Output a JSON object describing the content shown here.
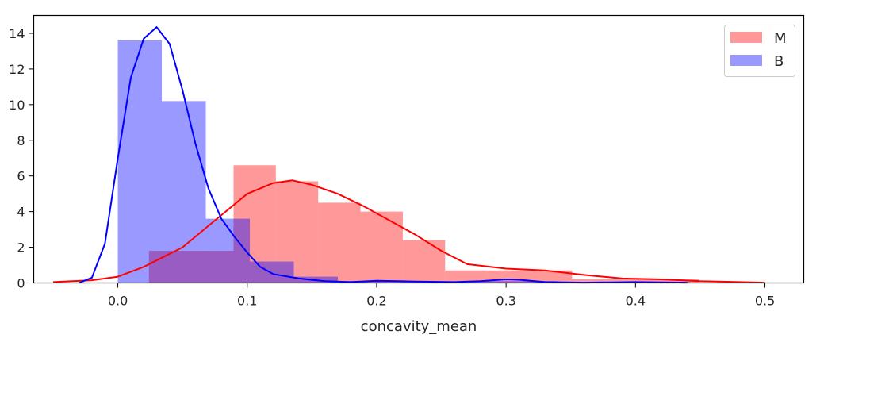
{
  "chart_data": {
    "type": "histogram",
    "xlabel": "concavity_mean",
    "ylabel": "",
    "title": "",
    "xlim": [
      -0.065,
      0.53
    ],
    "ylim": [
      0,
      15
    ],
    "xticks": [
      "0.0",
      "0.1",
      "0.2",
      "0.3",
      "0.4",
      "0.5"
    ],
    "yticks": [
      "0",
      "2",
      "4",
      "6",
      "8",
      "10",
      "12",
      "14"
    ],
    "legend": {
      "position": "top-right",
      "entries": [
        "M",
        "B"
      ]
    },
    "series": [
      {
        "name": "M",
        "color": "#ff0000",
        "bar_color": "#ff9494",
        "bins": [
          {
            "x0": 0.024,
            "x1": 0.0567,
            "y": 1.8
          },
          {
            "x0": 0.0567,
            "x1": 0.0894,
            "y": 1.8
          },
          {
            "x0": 0.0894,
            "x1": 0.1221,
            "y": 6.6
          },
          {
            "x0": 0.1221,
            "x1": 0.1548,
            "y": 5.7
          },
          {
            "x0": 0.1548,
            "x1": 0.1875,
            "y": 4.5
          },
          {
            "x0": 0.1875,
            "x1": 0.2202,
            "y": 4.0
          },
          {
            "x0": 0.2202,
            "x1": 0.2529,
            "y": 2.4
          },
          {
            "x0": 0.2529,
            "x1": 0.2856,
            "y": 0.7
          },
          {
            "x0": 0.2856,
            "x1": 0.3183,
            "y": 0.7
          },
          {
            "x0": 0.3183,
            "x1": 0.351,
            "y": 0.7
          },
          {
            "x0": 0.351,
            "x1": 0.3837,
            "y": 0.2
          },
          {
            "x0": 0.3837,
            "x1": 0.4164,
            "y": 0.2
          },
          {
            "x0": 0.4164,
            "x1": 0.4491,
            "y": 0.2
          }
        ],
        "kde": {
          "x": [
            -0.05,
            -0.02,
            0.0,
            0.02,
            0.05,
            0.08,
            0.1,
            0.12,
            0.135,
            0.15,
            0.17,
            0.19,
            0.21,
            0.23,
            0.25,
            0.27,
            0.3,
            0.33,
            0.36,
            0.39,
            0.42,
            0.45,
            0.5
          ],
          "y": [
            0.05,
            0.15,
            0.35,
            0.9,
            2.0,
            3.8,
            5.0,
            5.6,
            5.75,
            5.5,
            5.0,
            4.3,
            3.5,
            2.7,
            1.8,
            1.05,
            0.8,
            0.7,
            0.45,
            0.25,
            0.2,
            0.1,
            0.02
          ]
        }
      },
      {
        "name": "B",
        "color": "#0000ff",
        "bar_color": "#9a9aff",
        "bins": [
          {
            "x0": 0.0,
            "x1": 0.034,
            "y": 13.6
          },
          {
            "x0": 0.034,
            "x1": 0.068,
            "y": 10.2
          },
          {
            "x0": 0.068,
            "x1": 0.102,
            "y": 3.6
          },
          {
            "x0": 0.102,
            "x1": 0.136,
            "y": 1.2
          },
          {
            "x0": 0.136,
            "x1": 0.17,
            "y": 0.35
          },
          {
            "x0": 0.17,
            "x1": 0.204,
            "y": 0.1
          },
          {
            "x0": 0.204,
            "x1": 0.238,
            "y": 0.1
          },
          {
            "x0": 0.238,
            "x1": 0.272,
            "y": 0.0
          },
          {
            "x0": 0.272,
            "x1": 0.306,
            "y": 0.1
          },
          {
            "x0": 0.306,
            "x1": 0.34,
            "y": 0.1
          },
          {
            "x0": 0.34,
            "x1": 0.374,
            "y": 0.05
          },
          {
            "x0": 0.374,
            "x1": 0.408,
            "y": 0.05
          },
          {
            "x0": 0.408,
            "x1": 0.442,
            "y": 0.05
          }
        ],
        "kde": {
          "x": [
            -0.03,
            -0.02,
            -0.01,
            0.0,
            0.01,
            0.02,
            0.03,
            0.04,
            0.05,
            0.06,
            0.07,
            0.08,
            0.09,
            0.1,
            0.11,
            0.12,
            0.14,
            0.16,
            0.18,
            0.2,
            0.23,
            0.26,
            0.28,
            0.3,
            0.31,
            0.33,
            0.36,
            0.4,
            0.44
          ],
          "y": [
            0.0,
            0.3,
            2.2,
            7.0,
            11.5,
            13.7,
            14.35,
            13.4,
            10.8,
            7.8,
            5.3,
            3.6,
            2.6,
            1.7,
            0.9,
            0.5,
            0.25,
            0.1,
            0.05,
            0.12,
            0.08,
            0.05,
            0.1,
            0.2,
            0.18,
            0.05,
            0.02,
            0.05,
            0.02
          ]
        }
      }
    ]
  }
}
